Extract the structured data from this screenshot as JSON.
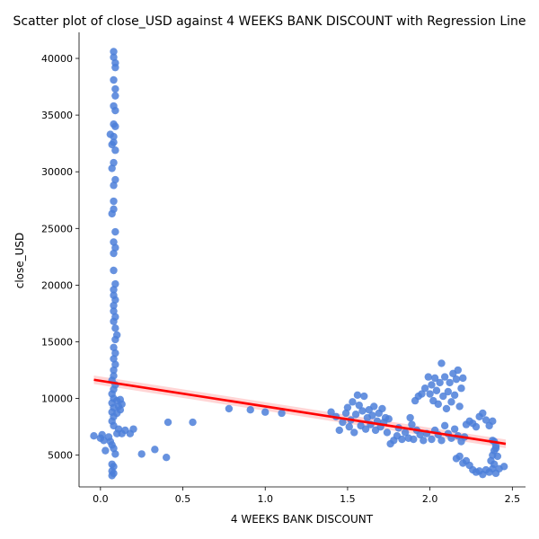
{
  "chart_data": {
    "type": "scatter",
    "title": "Scatter plot of close_USD against 4 WEEKS BANK DISCOUNT with Regression Line",
    "xlabel": "4 WEEKS BANK DISCOUNT",
    "ylabel": "close_USD",
    "xlim": [
      -0.13,
      2.58
    ],
    "ylim": [
      2200,
      42300
    ],
    "xticks": [
      "0.0",
      "0.5",
      "1.0",
      "1.5",
      "2.0",
      "2.5"
    ],
    "xtick_values": [
      0,
      0.5,
      1.0,
      1.5,
      2.0,
      2.5
    ],
    "yticks": [
      "5000",
      "10000",
      "15000",
      "20000",
      "25000",
      "30000",
      "35000",
      "40000"
    ],
    "ytick_values": [
      5000,
      10000,
      15000,
      20000,
      25000,
      30000,
      35000,
      40000
    ],
    "grid": false,
    "point_color": "#4c7fd9",
    "line_color": "#ff0000",
    "band_color": "#ffb3b3",
    "regression": {
      "x": [
        -0.04,
        2.46
      ],
      "y": [
        11650,
        6000
      ]
    },
    "points": [
      [
        -0.04,
        6700
      ],
      [
        0.0,
        6500
      ],
      [
        0.01,
        6800
      ],
      [
        0.02,
        6300
      ],
      [
        0.03,
        5400
      ],
      [
        0.05,
        6600
      ],
      [
        0.06,
        6200
      ],
      [
        0.07,
        5900
      ],
      [
        0.08,
        5600
      ],
      [
        0.09,
        5100
      ],
      [
        0.1,
        6900
      ],
      [
        0.11,
        7300
      ],
      [
        0.13,
        6900
      ],
      [
        0.15,
        7200
      ],
      [
        0.18,
        6900
      ],
      [
        0.2,
        7300
      ],
      [
        0.25,
        5100
      ],
      [
        0.33,
        5500
      ],
      [
        0.41,
        7900
      ],
      [
        0.4,
        4800
      ],
      [
        0.56,
        7900
      ],
      [
        0.07,
        3200
      ],
      [
        0.07,
        3600
      ],
      [
        0.08,
        4000
      ],
      [
        0.07,
        4200
      ],
      [
        0.08,
        3400
      ],
      [
        0.08,
        7600
      ],
      [
        0.07,
        8000
      ],
      [
        0.08,
        8400
      ],
      [
        0.07,
        8800
      ],
      [
        0.08,
        9200
      ],
      [
        0.07,
        9600
      ],
      [
        0.08,
        10000
      ],
      [
        0.07,
        10400
      ],
      [
        0.08,
        10800
      ],
      [
        0.09,
        11200
      ],
      [
        0.07,
        11600
      ],
      [
        0.08,
        12000
      ],
      [
        0.1,
        9800
      ],
      [
        0.11,
        9300
      ],
      [
        0.12,
        9900
      ],
      [
        0.13,
        9500
      ],
      [
        0.12,
        9000
      ],
      [
        0.1,
        8700
      ],
      [
        0.08,
        12500
      ],
      [
        0.09,
        13000
      ],
      [
        0.08,
        13500
      ],
      [
        0.09,
        14000
      ],
      [
        0.08,
        14500
      ],
      [
        0.09,
        15200
      ],
      [
        0.1,
        15600
      ],
      [
        0.09,
        16200
      ],
      [
        0.08,
        16800
      ],
      [
        0.09,
        17200
      ],
      [
        0.08,
        17700
      ],
      [
        0.08,
        18200
      ],
      [
        0.09,
        18700
      ],
      [
        0.08,
        19100
      ],
      [
        0.08,
        19600
      ],
      [
        0.09,
        20100
      ],
      [
        0.08,
        21300
      ],
      [
        0.08,
        22800
      ],
      [
        0.09,
        23300
      ],
      [
        0.08,
        23800
      ],
      [
        0.09,
        24700
      ],
      [
        0.07,
        26300
      ],
      [
        0.08,
        26700
      ],
      [
        0.08,
        27400
      ],
      [
        0.08,
        28800
      ],
      [
        0.09,
        29300
      ],
      [
        0.07,
        30300
      ],
      [
        0.08,
        30800
      ],
      [
        0.09,
        31900
      ],
      [
        0.07,
        32400
      ],
      [
        0.08,
        32600
      ],
      [
        0.08,
        33100
      ],
      [
        0.06,
        33300
      ],
      [
        0.09,
        34000
      ],
      [
        0.08,
        34200
      ],
      [
        0.09,
        35400
      ],
      [
        0.08,
        35800
      ],
      [
        0.09,
        36700
      ],
      [
        0.09,
        37300
      ],
      [
        0.08,
        38100
      ],
      [
        0.09,
        39200
      ],
      [
        0.09,
        39600
      ],
      [
        0.08,
        40100
      ],
      [
        0.08,
        40600
      ],
      [
        0.78,
        9100
      ],
      [
        0.91,
        9000
      ],
      [
        1.0,
        8800
      ],
      [
        1.1,
        8700
      ],
      [
        1.4,
        8800
      ],
      [
        1.43,
        8400
      ],
      [
        1.45,
        7200
      ],
      [
        1.47,
        7900
      ],
      [
        1.49,
        8700
      ],
      [
        1.5,
        9200
      ],
      [
        1.51,
        7500
      ],
      [
        1.52,
        8100
      ],
      [
        1.53,
        9700
      ],
      [
        1.54,
        7000
      ],
      [
        1.55,
        8600
      ],
      [
        1.56,
        10300
      ],
      [
        1.57,
        9400
      ],
      [
        1.58,
        7600
      ],
      [
        1.59,
        8900
      ],
      [
        1.6,
        10200
      ],
      [
        1.61,
        7300
      ],
      [
        1.62,
        8300
      ],
      [
        1.63,
        9000
      ],
      [
        1.64,
        7700
      ],
      [
        1.65,
        8500
      ],
      [
        1.66,
        9300
      ],
      [
        1.67,
        7200
      ],
      [
        1.68,
        8000
      ],
      [
        1.69,
        8700
      ],
      [
        1.7,
        7500
      ],
      [
        1.71,
        9100
      ],
      [
        1.72,
        7900
      ],
      [
        1.73,
        8300
      ],
      [
        1.74,
        7000
      ],
      [
        1.75,
        8200
      ],
      [
        1.76,
        6000
      ],
      [
        1.78,
        6300
      ],
      [
        1.8,
        6700
      ],
      [
        1.81,
        7400
      ],
      [
        1.83,
        6400
      ],
      [
        1.85,
        7000
      ],
      [
        1.87,
        6500
      ],
      [
        1.88,
        8300
      ],
      [
        1.89,
        7700
      ],
      [
        1.9,
        6400
      ],
      [
        1.92,
        7200
      ],
      [
        1.94,
        6800
      ],
      [
        1.96,
        6300
      ],
      [
        1.98,
        6900
      ],
      [
        1.91,
        9800
      ],
      [
        1.93,
        10200
      ],
      [
        1.95,
        10400
      ],
      [
        1.97,
        10900
      ],
      [
        1.99,
        11900
      ],
      [
        2.0,
        10400
      ],
      [
        2.01,
        11200
      ],
      [
        2.02,
        9800
      ],
      [
        2.03,
        11800
      ],
      [
        2.04,
        10700
      ],
      [
        2.05,
        9500
      ],
      [
        2.06,
        11400
      ],
      [
        2.07,
        13100
      ],
      [
        2.08,
        10200
      ],
      [
        2.09,
        11900
      ],
      [
        2.1,
        9100
      ],
      [
        2.11,
        10600
      ],
      [
        2.12,
        11400
      ],
      [
        2.13,
        9700
      ],
      [
        2.14,
        12200
      ],
      [
        2.15,
        10300
      ],
      [
        2.16,
        11700
      ],
      [
        2.17,
        12500
      ],
      [
        2.18,
        9300
      ],
      [
        2.19,
        10900
      ],
      [
        2.2,
        11800
      ],
      [
        2.01,
        6400
      ],
      [
        2.03,
        7200
      ],
      [
        2.05,
        6800
      ],
      [
        2.07,
        6300
      ],
      [
        2.09,
        7600
      ],
      [
        2.11,
        6900
      ],
      [
        2.13,
        6500
      ],
      [
        2.15,
        7300
      ],
      [
        2.17,
        6700
      ],
      [
        2.19,
        6200
      ],
      [
        2.21,
        6600
      ],
      [
        2.16,
        4700
      ],
      [
        2.18,
        4900
      ],
      [
        2.2,
        4300
      ],
      [
        2.22,
        4500
      ],
      [
        2.24,
        4100
      ],
      [
        2.26,
        3700
      ],
      [
        2.28,
        3500
      ],
      [
        2.3,
        3600
      ],
      [
        2.32,
        3300
      ],
      [
        2.34,
        3700
      ],
      [
        2.36,
        3500
      ],
      [
        2.38,
        3800
      ],
      [
        2.4,
        3400
      ],
      [
        2.42,
        3800
      ],
      [
        2.45,
        4000
      ],
      [
        2.22,
        7700
      ],
      [
        2.24,
        8000
      ],
      [
        2.26,
        7800
      ],
      [
        2.28,
        7500
      ],
      [
        2.3,
        8400
      ],
      [
        2.32,
        8700
      ],
      [
        2.34,
        8100
      ],
      [
        2.36,
        7600
      ],
      [
        2.38,
        8000
      ],
      [
        2.37,
        4500
      ],
      [
        2.38,
        5000
      ],
      [
        2.39,
        5400
      ],
      [
        2.4,
        5800
      ],
      [
        2.38,
        6300
      ],
      [
        2.39,
        4200
      ],
      [
        2.4,
        5600
      ],
      [
        2.39,
        6200
      ],
      [
        2.41,
        4900
      ]
    ]
  }
}
